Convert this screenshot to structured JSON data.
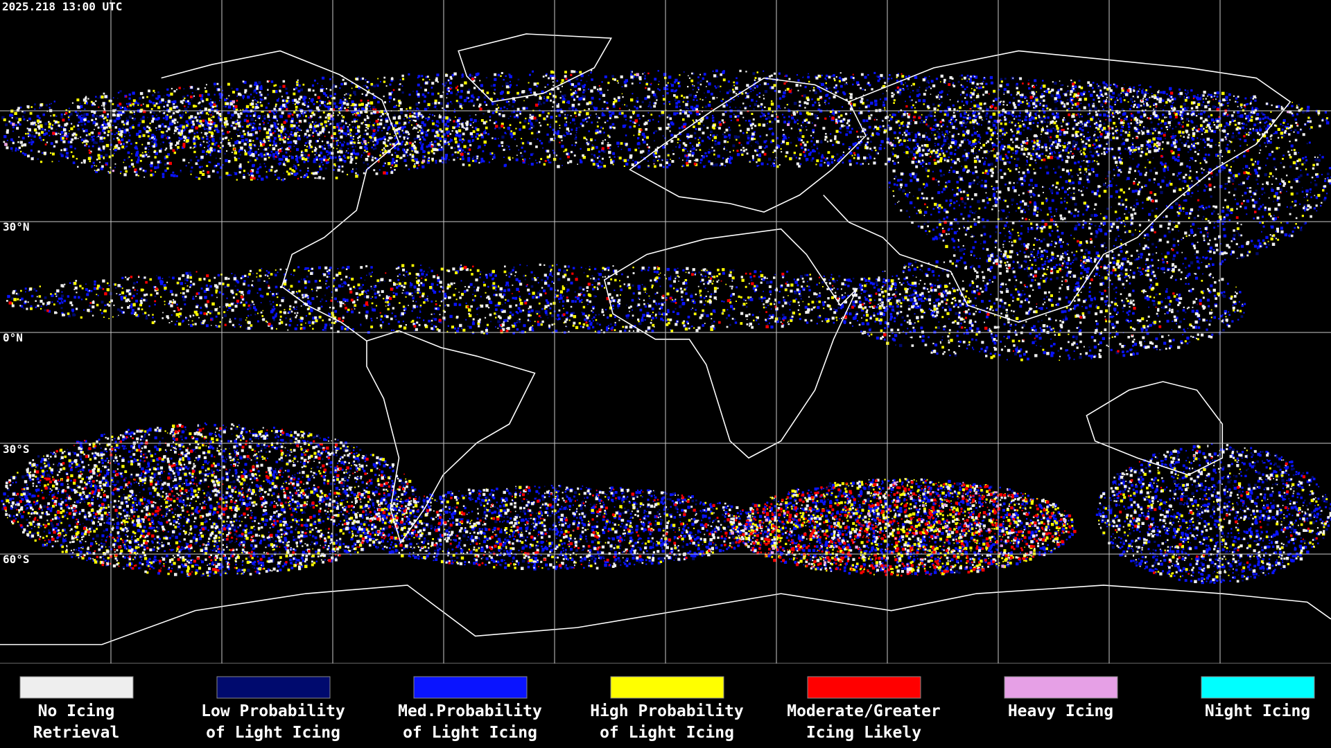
{
  "timestamp": "2025.218 13:00 UTC",
  "lat_labels": [
    "30°N",
    "0°N",
    "30°S",
    "60°S"
  ],
  "legend": [
    {
      "label": [
        "No Icing",
        "Retrieval"
      ],
      "color": "#eeeeee"
    },
    {
      "label": [
        "Low Probability",
        "of Light Icing"
      ],
      "color": "#000a6e"
    },
    {
      "label": [
        "Med.Probability",
        "of Light Icing"
      ],
      "color": "#0a14ff"
    },
    {
      "label": [
        "High Probability",
        "of Light Icing"
      ],
      "color": "#ffff00"
    },
    {
      "label": [
        "Moderate/Greater",
        "Icing Likely"
      ],
      "color": "#ff0000"
    },
    {
      "label": [
        "Heavy Icing"
      ],
      "color": "#e6a0e6"
    },
    {
      "label": [
        "Night Icing"
      ],
      "color": "#00ffff"
    }
  ]
}
